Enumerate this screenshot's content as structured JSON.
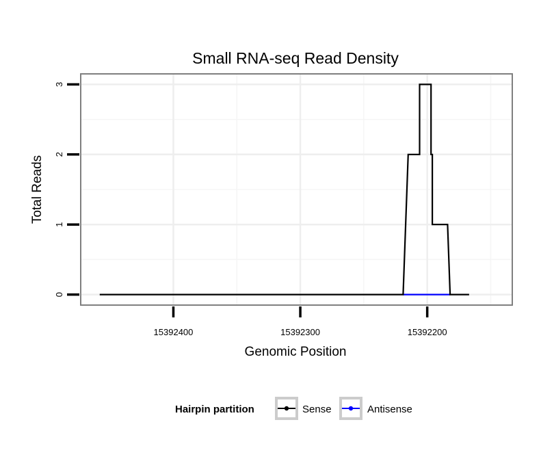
{
  "chart_data": {
    "type": "line",
    "title": "Small RNA-seq Read Density",
    "xlabel": "Genomic Position",
    "ylabel": "Total Reads",
    "x_reversed": true,
    "xlim": [
      15392473,
      15392133
    ],
    "ylim": [
      -0.15,
      3.15
    ],
    "x_ticks": [
      15392400,
      15392300,
      15392200
    ],
    "x_tick_labels": [
      "15392400",
      "15392300",
      "15392200"
    ],
    "y_ticks": [
      0,
      1,
      2,
      3
    ],
    "y_tick_labels": [
      "0",
      "1",
      "2",
      "3"
    ],
    "grid": true,
    "legend": {
      "title": "Hairpin partition",
      "placement": "bottom",
      "entries": [
        {
          "name": "Sense",
          "color": "#000000"
        },
        {
          "name": "Antisense",
          "color": "#0000ff"
        }
      ]
    },
    "series": [
      {
        "name": "Sense",
        "color": "#000000",
        "x": [
          15392458,
          15392219,
          15392217,
          15392217,
          15392215,
          15392215,
          15392206,
          15392206,
          15392197,
          15392197,
          15392196,
          15392196,
          15392184,
          15392184,
          15392182,
          15392167
        ],
        "y": [
          0,
          0,
          1,
          1,
          2,
          2,
          2,
          3,
          3,
          2,
          2,
          1,
          1,
          1,
          0,
          0
        ]
      },
      {
        "name": "Antisense",
        "color": "#0000ff",
        "x": [
          15392219,
          15392182
        ],
        "y": [
          0,
          0
        ]
      }
    ]
  }
}
